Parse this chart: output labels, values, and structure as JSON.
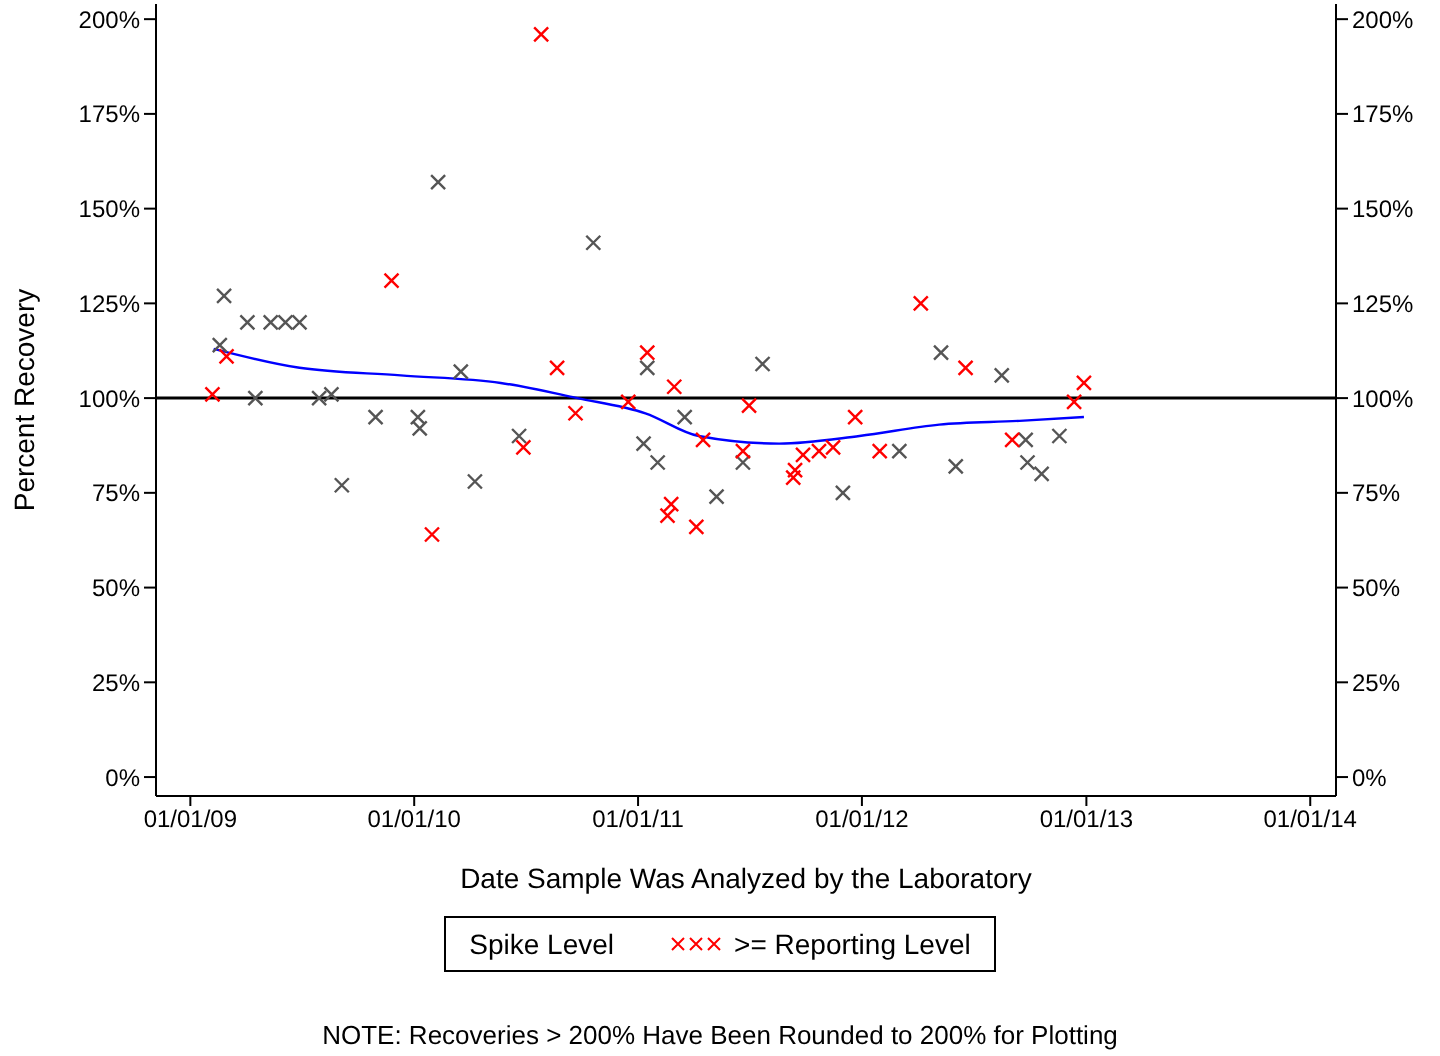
{
  "chart_data": {
    "type": "scatter",
    "xlabel": "Date Sample Was Analyzed by the Laboratory",
    "ylabel": "Percent Recovery",
    "legend_title": "Spike Level",
    "legend": "bottom",
    "marker": "cross",
    "annotations": [
      "NOTE: Recoveries > 200% Have Been Rounded to 200% for Plotting"
    ],
    "xlim": [
      "2008-11-06",
      "2014-02-12"
    ],
    "xticks": [
      {
        "value": "2009-01-01",
        "label": "01/01/09"
      },
      {
        "value": "2010-01-01",
        "label": "01/01/10"
      },
      {
        "value": "2011-01-01",
        "label": "01/01/11"
      },
      {
        "value": "2012-01-01",
        "label": "01/01/12"
      },
      {
        "value": "2013-01-01",
        "label": "01/01/13"
      },
      {
        "value": "2014-01-01",
        "label": "01/01/14"
      }
    ],
    "ylim": [
      -5,
      204
    ],
    "yticks": [
      {
        "value": 0,
        "label": "0%"
      },
      {
        "value": 25,
        "label": "25%"
      },
      {
        "value": 50,
        "label": "50%"
      },
      {
        "value": 75,
        "label": "75%"
      },
      {
        "value": 100,
        "label": "100%"
      },
      {
        "value": 125,
        "label": "125%"
      },
      {
        "value": 150,
        "label": "150%"
      },
      {
        "value": 175,
        "label": "175%"
      },
      {
        "value": 200,
        "label": "200%"
      }
    ],
    "y2lim": [
      -5,
      204
    ],
    "y2ticks": [
      {
        "value": 0,
        "label": "0%"
      },
      {
        "value": 25,
        "label": "25%"
      },
      {
        "value": 50,
        "label": "50%"
      },
      {
        "value": 75,
        "label": "75%"
      },
      {
        "value": 100,
        "label": "100%"
      },
      {
        "value": 125,
        "label": "125%"
      },
      {
        "value": 150,
        "label": "150%"
      },
      {
        "value": 175,
        "label": "175%"
      },
      {
        "value": 200,
        "label": "200%"
      }
    ],
    "ref_lines": [
      {
        "axis": "y",
        "value": 100,
        "color": "#000000"
      }
    ],
    "series": [
      {
        "color": "#555555",
        "x": [
          "2009-02-18",
          "2009-02-25",
          "2009-04-04",
          "2009-04-17",
          "2009-05-12",
          "2009-06-05",
          "2009-06-28",
          "2009-07-30",
          "2009-08-19",
          "2009-09-05",
          "2009-10-30",
          "2010-01-07",
          "2010-01-10",
          "2010-02-09",
          "2010-03-18",
          "2010-04-10",
          "2010-06-21",
          "2010-10-20",
          "2011-01-10",
          "2011-01-16",
          "2011-02-02",
          "2011-03-18",
          "2011-05-09",
          "2011-06-21",
          "2011-07-23",
          "2011-12-01",
          "2012-03-02",
          "2012-05-09",
          "2012-06-02",
          "2012-08-16",
          "2012-09-24",
          "2012-09-27",
          "2012-10-20",
          "2012-11-18"
        ],
        "values": [
          114,
          127,
          120,
          100,
          120,
          120,
          120,
          100,
          101,
          77,
          95,
          95,
          92,
          157,
          107,
          78,
          90,
          141,
          88,
          108,
          83,
          95,
          74,
          83,
          109,
          75,
          86,
          112,
          82,
          106,
          89,
          83,
          80,
          90
        ]
      },
      {
        "name": ">= Reporting Level",
        "color": "#ff0000",
        "x": [
          "2009-02-06",
          "2009-03-01",
          "2009-11-25",
          "2010-01-30",
          "2010-06-28",
          "2010-07-27",
          "2010-08-22",
          "2010-09-21",
          "2010-12-16",
          "2011-01-16",
          "2011-02-18",
          "2011-02-24",
          "2011-03-01",
          "2011-04-06",
          "2011-04-17",
          "2011-06-21",
          "2011-07-01",
          "2011-09-11",
          "2011-09-14",
          "2011-09-27",
          "2011-10-23",
          "2011-11-15",
          "2011-12-21",
          "2012-01-30",
          "2012-04-06",
          "2012-06-18",
          "2012-09-02",
          "2012-12-12",
          "2012-12-28"
        ],
        "values": [
          101,
          111,
          131,
          64,
          87,
          196,
          108,
          96,
          99,
          112,
          69,
          72,
          103,
          66,
          89,
          86,
          98,
          79,
          81,
          85,
          86,
          87,
          95,
          86,
          125,
          108,
          89,
          99,
          104
        ]
      },
      {
        "type": "line",
        "marker": "none",
        "line_style": "solid",
        "color": "#0000ff",
        "x": [
          "2009-02-08",
          "2009-06-28",
          "2009-12-10",
          "2010-05-22",
          "2010-09-24",
          "2011-01-13",
          "2011-04-10",
          "2011-08-19",
          "2011-12-28",
          "2012-05-06",
          "2012-09-14",
          "2012-12-28"
        ],
        "values": [
          113,
          108,
          106,
          104,
          100,
          96,
          90,
          88,
          90,
          93,
          94,
          95
        ]
      }
    ]
  }
}
